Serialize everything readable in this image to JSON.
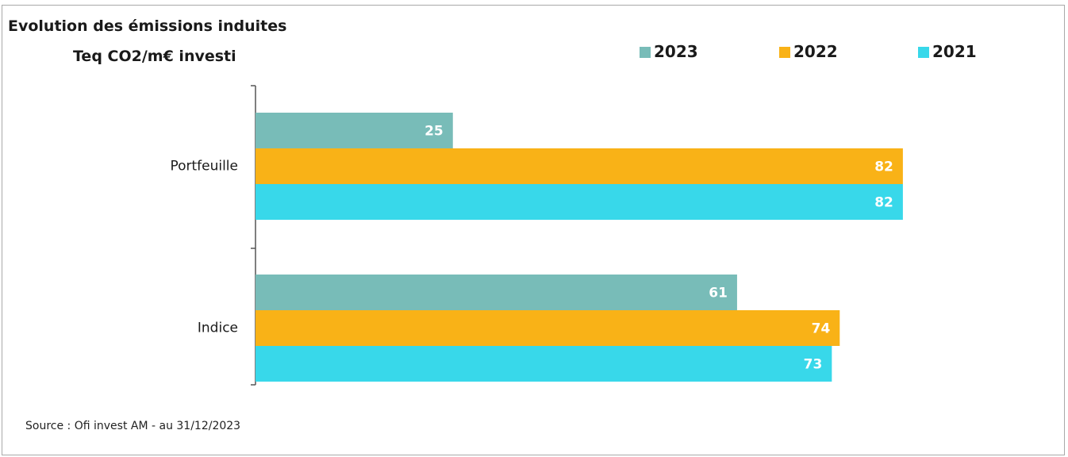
{
  "chart_data": {
    "type": "bar",
    "orientation": "horizontal",
    "title": "Evolution des émissions induites",
    "subtitle": "Teq CO2/m€ investi",
    "categories": [
      "Portfeuille",
      "Indice"
    ],
    "series": [
      {
        "name": "2023",
        "values": [
          25,
          61
        ],
        "color": "#78bcb8"
      },
      {
        "name": "2022",
        "values": [
          82,
          74
        ],
        "color": "#f9b217"
      },
      {
        "name": "2021",
        "values": [
          82,
          73
        ],
        "color": "#38d8ea"
      }
    ],
    "xlim": [
      0,
      100
    ],
    "grid": false,
    "legend_position": "top-right",
    "source": "Source : Ofi invest AM - au 31/12/2023"
  }
}
